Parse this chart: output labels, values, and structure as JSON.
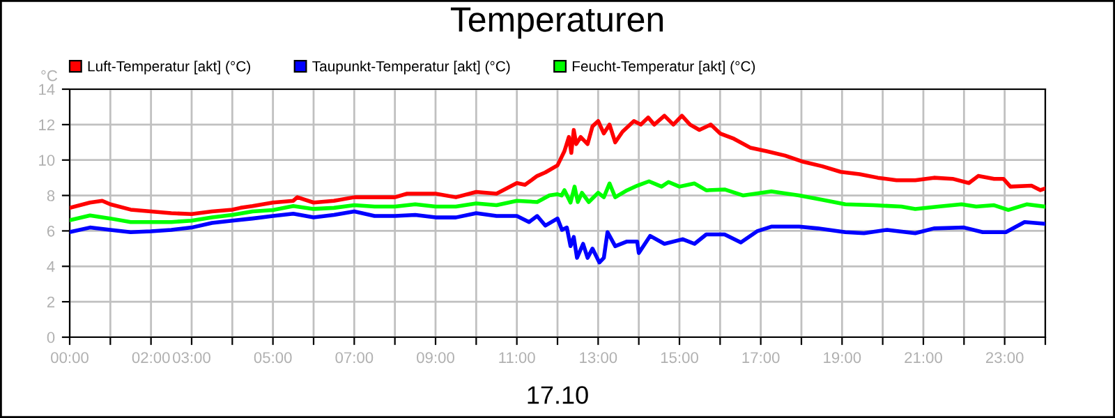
{
  "chart_data": {
    "type": "line",
    "title": "Temperaturen",
    "xlabel": "17.10",
    "ylabel": "°C",
    "xlim": [
      0,
      24
    ],
    "ylim": [
      0,
      14
    ],
    "yticks": [
      0,
      2,
      4,
      6,
      8,
      10,
      12,
      14
    ],
    "xticks": [
      {
        "value": 0,
        "label": "00:00"
      },
      {
        "value": 1,
        "label": null
      },
      {
        "value": 2,
        "label": "02:00"
      },
      {
        "value": 3,
        "label": "03:00"
      },
      {
        "value": 4,
        "label": null
      },
      {
        "value": 5,
        "label": "05:00"
      },
      {
        "value": 6,
        "label": null
      },
      {
        "value": 7,
        "label": "07:00"
      },
      {
        "value": 8,
        "label": null
      },
      {
        "value": 9,
        "label": "09:00"
      },
      {
        "value": 10,
        "label": null
      },
      {
        "value": 11,
        "label": "11:00"
      },
      {
        "value": 12,
        "label": null
      },
      {
        "value": 13,
        "label": "13:00"
      },
      {
        "value": 14,
        "label": null
      },
      {
        "value": 15,
        "label": "15:00"
      },
      {
        "value": 16,
        "label": null
      },
      {
        "value": 17,
        "label": "17:00"
      },
      {
        "value": 18,
        "label": null
      },
      {
        "value": 19,
        "label": "19:00"
      },
      {
        "value": 20,
        "label": null
      },
      {
        "value": 21,
        "label": "21:00"
      },
      {
        "value": 22,
        "label": null
      },
      {
        "value": 23,
        "label": "23:00"
      },
      {
        "value": 24,
        "label": null
      }
    ],
    "grid": true,
    "legend": "top",
    "marker": "none",
    "line_style": "solid",
    "series": [
      {
        "name": "Luft-Temperatur [akt] (°C)",
        "color": "#ff0000",
        "x": [
          0,
          0.5,
          0.8,
          1.0,
          1.5,
          2.0,
          2.5,
          3.0,
          3.5,
          4.0,
          4.2,
          4.5,
          5.0,
          5.5,
          5.6,
          6.0,
          6.5,
          7.0,
          7.5,
          8.0,
          8.3,
          9.0,
          9.5,
          10.0,
          10.5,
          11.0,
          11.2,
          11.5,
          11.7,
          12.0,
          12.17,
          12.28,
          12.34,
          12.4,
          12.46,
          12.57,
          12.74,
          12.86,
          13.0,
          13.14,
          13.28,
          13.42,
          13.6,
          13.88,
          14.05,
          14.23,
          14.38,
          14.63,
          14.85,
          15.06,
          15.26,
          15.49,
          15.77,
          16.0,
          16.34,
          16.74,
          17.14,
          17.6,
          18.05,
          18.51,
          18.97,
          19.43,
          19.88,
          20.34,
          20.8,
          21.26,
          21.72,
          22.12,
          22.35,
          22.74,
          22.97,
          23.14,
          23.66,
          23.88,
          24.0
        ],
        "values": [
          7.3,
          7.6,
          7.7,
          7.5,
          7.2,
          7.1,
          7.0,
          6.95,
          7.1,
          7.2,
          7.3,
          7.4,
          7.6,
          7.7,
          7.9,
          7.6,
          7.7,
          7.9,
          7.9,
          7.9,
          8.1,
          8.1,
          7.9,
          8.2,
          8.1,
          8.7,
          8.6,
          9.1,
          9.3,
          9.7,
          10.5,
          11.3,
          10.4,
          11.7,
          10.9,
          11.3,
          10.9,
          11.9,
          12.2,
          11.5,
          12.0,
          11.0,
          11.6,
          12.2,
          12.0,
          12.4,
          12.0,
          12.5,
          12.0,
          12.5,
          12.0,
          11.7,
          12.0,
          11.5,
          11.2,
          10.7,
          10.5,
          10.25,
          9.9,
          9.65,
          9.33,
          9.2,
          9.0,
          8.86,
          8.86,
          9.0,
          8.94,
          8.7,
          9.1,
          8.94,
          8.94,
          8.5,
          8.55,
          8.3,
          8.4
        ]
      },
      {
        "name": "Taupunkt-Temperatur [akt] (°C)",
        "color": "#0000ff",
        "x": [
          0,
          0.5,
          1.0,
          1.5,
          2.0,
          2.5,
          3.0,
          3.5,
          4.0,
          4.5,
          5.0,
          5.5,
          6.0,
          6.5,
          7.0,
          7.5,
          8.0,
          8.5,
          9.0,
          9.5,
          10.0,
          10.5,
          11.0,
          11.3,
          11.5,
          11.7,
          12.0,
          12.11,
          12.23,
          12.32,
          12.4,
          12.48,
          12.63,
          12.74,
          12.86,
          13.03,
          13.14,
          13.23,
          13.42,
          13.71,
          13.96,
          14.0,
          14.28,
          14.63,
          15.08,
          15.37,
          15.66,
          16.11,
          16.51,
          16.91,
          17.26,
          17.94,
          18.4,
          19.08,
          19.54,
          20.11,
          20.8,
          21.26,
          22.0,
          22.46,
          23.03,
          23.49,
          24.0
        ],
        "values": [
          5.93,
          6.19,
          6.06,
          5.93,
          5.98,
          6.06,
          6.19,
          6.45,
          6.58,
          6.7,
          6.84,
          6.97,
          6.76,
          6.9,
          7.1,
          6.84,
          6.84,
          6.9,
          6.76,
          6.76,
          7.0,
          6.84,
          6.84,
          6.5,
          6.84,
          6.3,
          6.7,
          6.06,
          6.19,
          5.14,
          5.66,
          4.48,
          5.27,
          4.48,
          5.0,
          4.22,
          4.48,
          5.93,
          5.14,
          5.4,
          5.4,
          4.75,
          5.72,
          5.27,
          5.53,
          5.27,
          5.8,
          5.8,
          5.35,
          5.98,
          6.24,
          6.24,
          6.14,
          5.93,
          5.87,
          6.06,
          5.87,
          6.14,
          6.19,
          5.93,
          5.93,
          6.5,
          6.4
        ]
      },
      {
        "name": "Feucht-Temperatur [akt] (°C)",
        "color": "#00ff00",
        "x": [
          0,
          0.5,
          1.0,
          1.5,
          2.0,
          2.5,
          3.0,
          3.5,
          4.0,
          4.5,
          5.0,
          5.5,
          6.0,
          6.5,
          7.0,
          7.5,
          8.0,
          8.5,
          9.0,
          9.5,
          10.0,
          10.5,
          11.0,
          11.5,
          11.8,
          12.0,
          12.1,
          12.17,
          12.32,
          12.42,
          12.5,
          12.6,
          12.77,
          13.0,
          13.14,
          13.28,
          13.42,
          13.71,
          13.96,
          14.25,
          14.56,
          14.73,
          15.0,
          15.37,
          15.66,
          16.11,
          16.57,
          17.26,
          17.94,
          18.51,
          19.08,
          19.77,
          20.46,
          20.8,
          21.37,
          21.94,
          22.3,
          22.74,
          23.09,
          23.54,
          24.0
        ],
        "values": [
          6.6,
          6.87,
          6.7,
          6.5,
          6.5,
          6.5,
          6.58,
          6.76,
          6.9,
          7.1,
          7.18,
          7.4,
          7.24,
          7.3,
          7.45,
          7.37,
          7.37,
          7.5,
          7.37,
          7.37,
          7.55,
          7.45,
          7.7,
          7.63,
          8.0,
          8.07,
          8.0,
          8.3,
          7.6,
          8.5,
          7.63,
          8.15,
          7.63,
          8.15,
          7.9,
          8.68,
          7.9,
          8.29,
          8.55,
          8.8,
          8.5,
          8.76,
          8.5,
          8.68,
          8.29,
          8.34,
          8.0,
          8.23,
          8.0,
          7.76,
          7.5,
          7.45,
          7.37,
          7.24,
          7.37,
          7.5,
          7.37,
          7.45,
          7.18,
          7.5,
          7.37
        ]
      }
    ]
  }
}
